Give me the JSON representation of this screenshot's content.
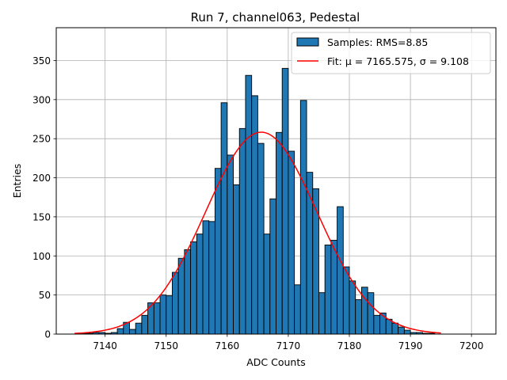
{
  "chart_data": {
    "type": "bar",
    "title": "Run 7, channel063, Pedestal",
    "xlabel": "ADC Counts",
    "ylabel": "Entries",
    "xlim": [
      7132,
      7204
    ],
    "ylim": [
      0,
      392
    ],
    "xticks": [
      7140,
      7150,
      7160,
      7170,
      7180,
      7190,
      7200
    ],
    "yticks": [
      0,
      50,
      100,
      150,
      200,
      250,
      300,
      350
    ],
    "grid": true,
    "legend_position": "top-right",
    "bin_width": 1,
    "bins": {
      "x_start": [
        7135,
        7136,
        7137,
        7138,
        7139,
        7140,
        7141,
        7142,
        7143,
        7144,
        7145,
        7146,
        7147,
        7148,
        7149,
        7150,
        7151,
        7152,
        7153,
        7154,
        7155,
        7156,
        7157,
        7158,
        7159,
        7160,
        7161,
        7162,
        7163,
        7164,
        7165,
        7166,
        7167,
        7168,
        7169,
        7170,
        7171,
        7172,
        7173,
        7174,
        7175,
        7176,
        7177,
        7178,
        7179,
        7180,
        7181,
        7182,
        7183,
        7184,
        7185,
        7186,
        7187,
        7188,
        7189,
        7190,
        7191,
        7192,
        7193,
        7194
      ],
      "counts": [
        0,
        1,
        1,
        2,
        2,
        1,
        2,
        7,
        15,
        6,
        14,
        24,
        40,
        40,
        50,
        49,
        79,
        97,
        108,
        118,
        128,
        145,
        144,
        212,
        296,
        229,
        191,
        263,
        331,
        305,
        244,
        128,
        173,
        258,
        340,
        234,
        63,
        299,
        207,
        186,
        53,
        114,
        120,
        163,
        86,
        68,
        44,
        60,
        53,
        24,
        27,
        19,
        14,
        9,
        5,
        2,
        2,
        1,
        1,
        0
      ]
    },
    "series": [
      {
        "name": "Samples: RMS=8.85",
        "kind": "histogram",
        "color": "#1f77b4"
      },
      {
        "name": "Fit: μ = 7165.575, σ = 9.108",
        "kind": "gaussian-fit",
        "color": "#ff0000",
        "mu": 7165.575,
        "sigma": 9.108,
        "x_range": [
          7135,
          7195
        ]
      }
    ]
  }
}
